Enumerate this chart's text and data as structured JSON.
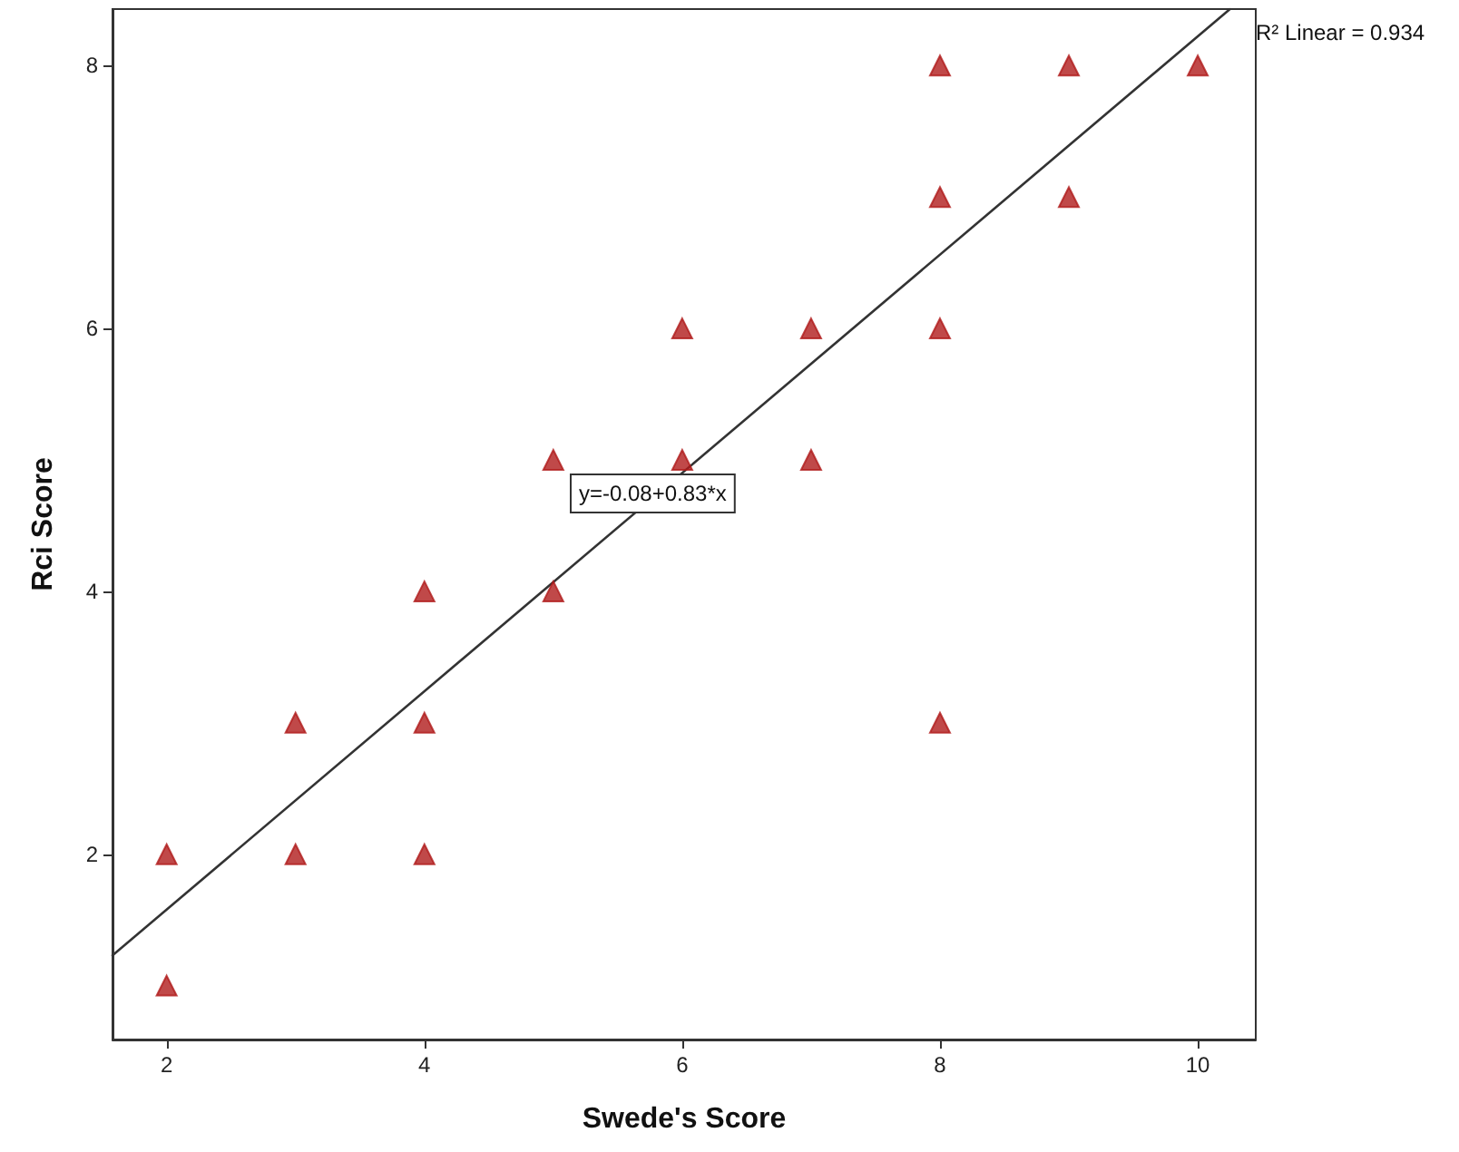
{
  "chart_data": {
    "type": "scatter",
    "xlabel": "Swede's Score",
    "ylabel": "Rci Score",
    "xlim": [
      1.58,
      10.45
    ],
    "ylim": [
      0.59,
      8.43
    ],
    "xticks": [
      2,
      4,
      6,
      8,
      10
    ],
    "yticks": [
      2,
      4,
      6,
      8
    ],
    "grid": false,
    "marker": "triangle",
    "series": [
      {
        "color": "#b01c1c",
        "x": [
          2,
          2,
          3,
          3,
          4,
          4,
          4,
          5,
          5,
          6,
          6,
          7,
          7,
          8,
          8,
          8,
          8,
          9,
          9,
          10
        ],
        "values": [
          2,
          1,
          3,
          2,
          4,
          3,
          2,
          5,
          4,
          6,
          5,
          6,
          5,
          8,
          7,
          6,
          3,
          8,
          7,
          8
        ]
      },
      {
        "type": "line",
        "color": "#333333",
        "marker": "none",
        "line_style": "solid",
        "x": [
          1.58,
          10.25
        ],
        "values": [
          1.23,
          8.43
        ]
      }
    ],
    "annotations": [
      "R² Linear = 0.934",
      "y=-0.08+0.83*x"
    ]
  }
}
